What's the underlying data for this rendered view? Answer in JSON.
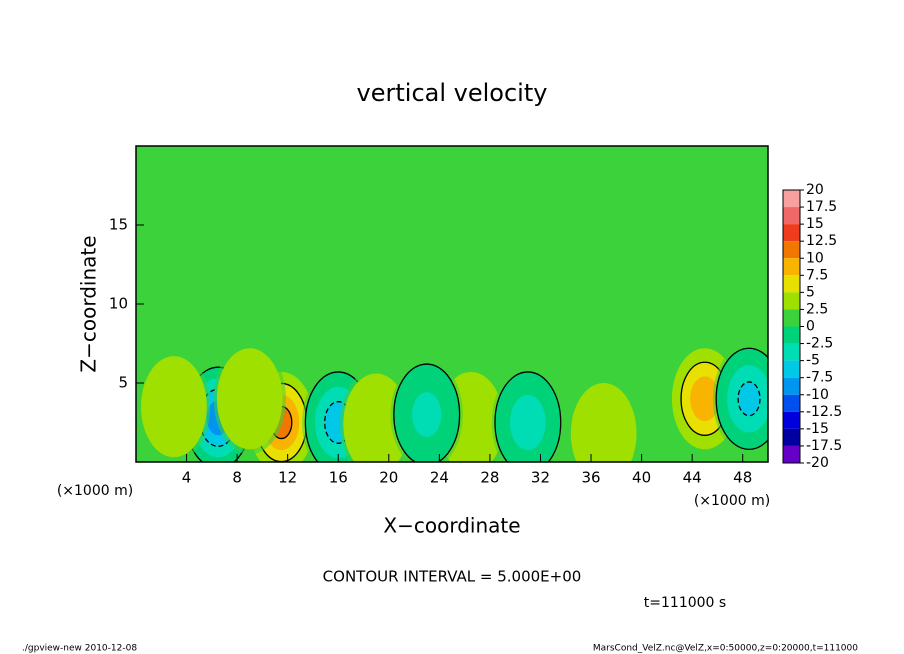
{
  "chart_data": {
    "type": "contour",
    "title": "vertical velocity",
    "xlabel": "X−coordinate",
    "ylabel": "Z−coordinate",
    "xunit_left": "(×1000 m)",
    "xunit_right": "(×1000 m)",
    "contour_note": "CONTOUR INTERVAL = 5.000E+00",
    "time_note": "t=111000 s",
    "footer_left": "./gpview-new  2010-12-08",
    "footer_right": "MarsCond_VelZ.nc@VelZ,x=0:50000,z=0:20000,t=111000",
    "xlim": [
      0,
      50
    ],
    "ylim": [
      0,
      20
    ],
    "xticks": [
      4,
      8,
      12,
      16,
      20,
      24,
      28,
      32,
      36,
      40,
      44,
      48
    ],
    "yticks": [
      5,
      10,
      15
    ],
    "background_value": 1,
    "contour_interval": 5,
    "series": [
      {
        "x": [
          11.5,
          6.5,
          16,
          19,
          26.5,
          37,
          45,
          48.5,
          31,
          3,
          9,
          23
        ],
        "y": [
          2.5,
          2.8,
          2.5,
          2.4,
          2.5,
          1.8,
          4,
          4,
          2.5,
          3.5,
          4,
          3
        ],
        "values": [
          12,
          -10,
          -7,
          5,
          5,
          5,
          10,
          -6,
          -4,
          4,
          4,
          -3
        ]
      }
    ],
    "colorbar": {
      "levels": [
        20,
        17.5,
        15,
        12.5,
        10,
        7.5,
        5,
        2.5,
        0,
        -2.5,
        -5,
        -7.5,
        -10,
        -12.5,
        -15,
        -17.5,
        -20
      ],
      "colors": [
        "#f8a0a0",
        "#f06868",
        "#f03c1e",
        "#f07800",
        "#f8b400",
        "#e8e000",
        "#a0e000",
        "#3cd23c",
        "#00d27a",
        "#00dcb4",
        "#00c8e6",
        "#0096f0",
        "#0050f0",
        "#0000dc",
        "#0000a0",
        "#6400c8"
      ]
    }
  }
}
